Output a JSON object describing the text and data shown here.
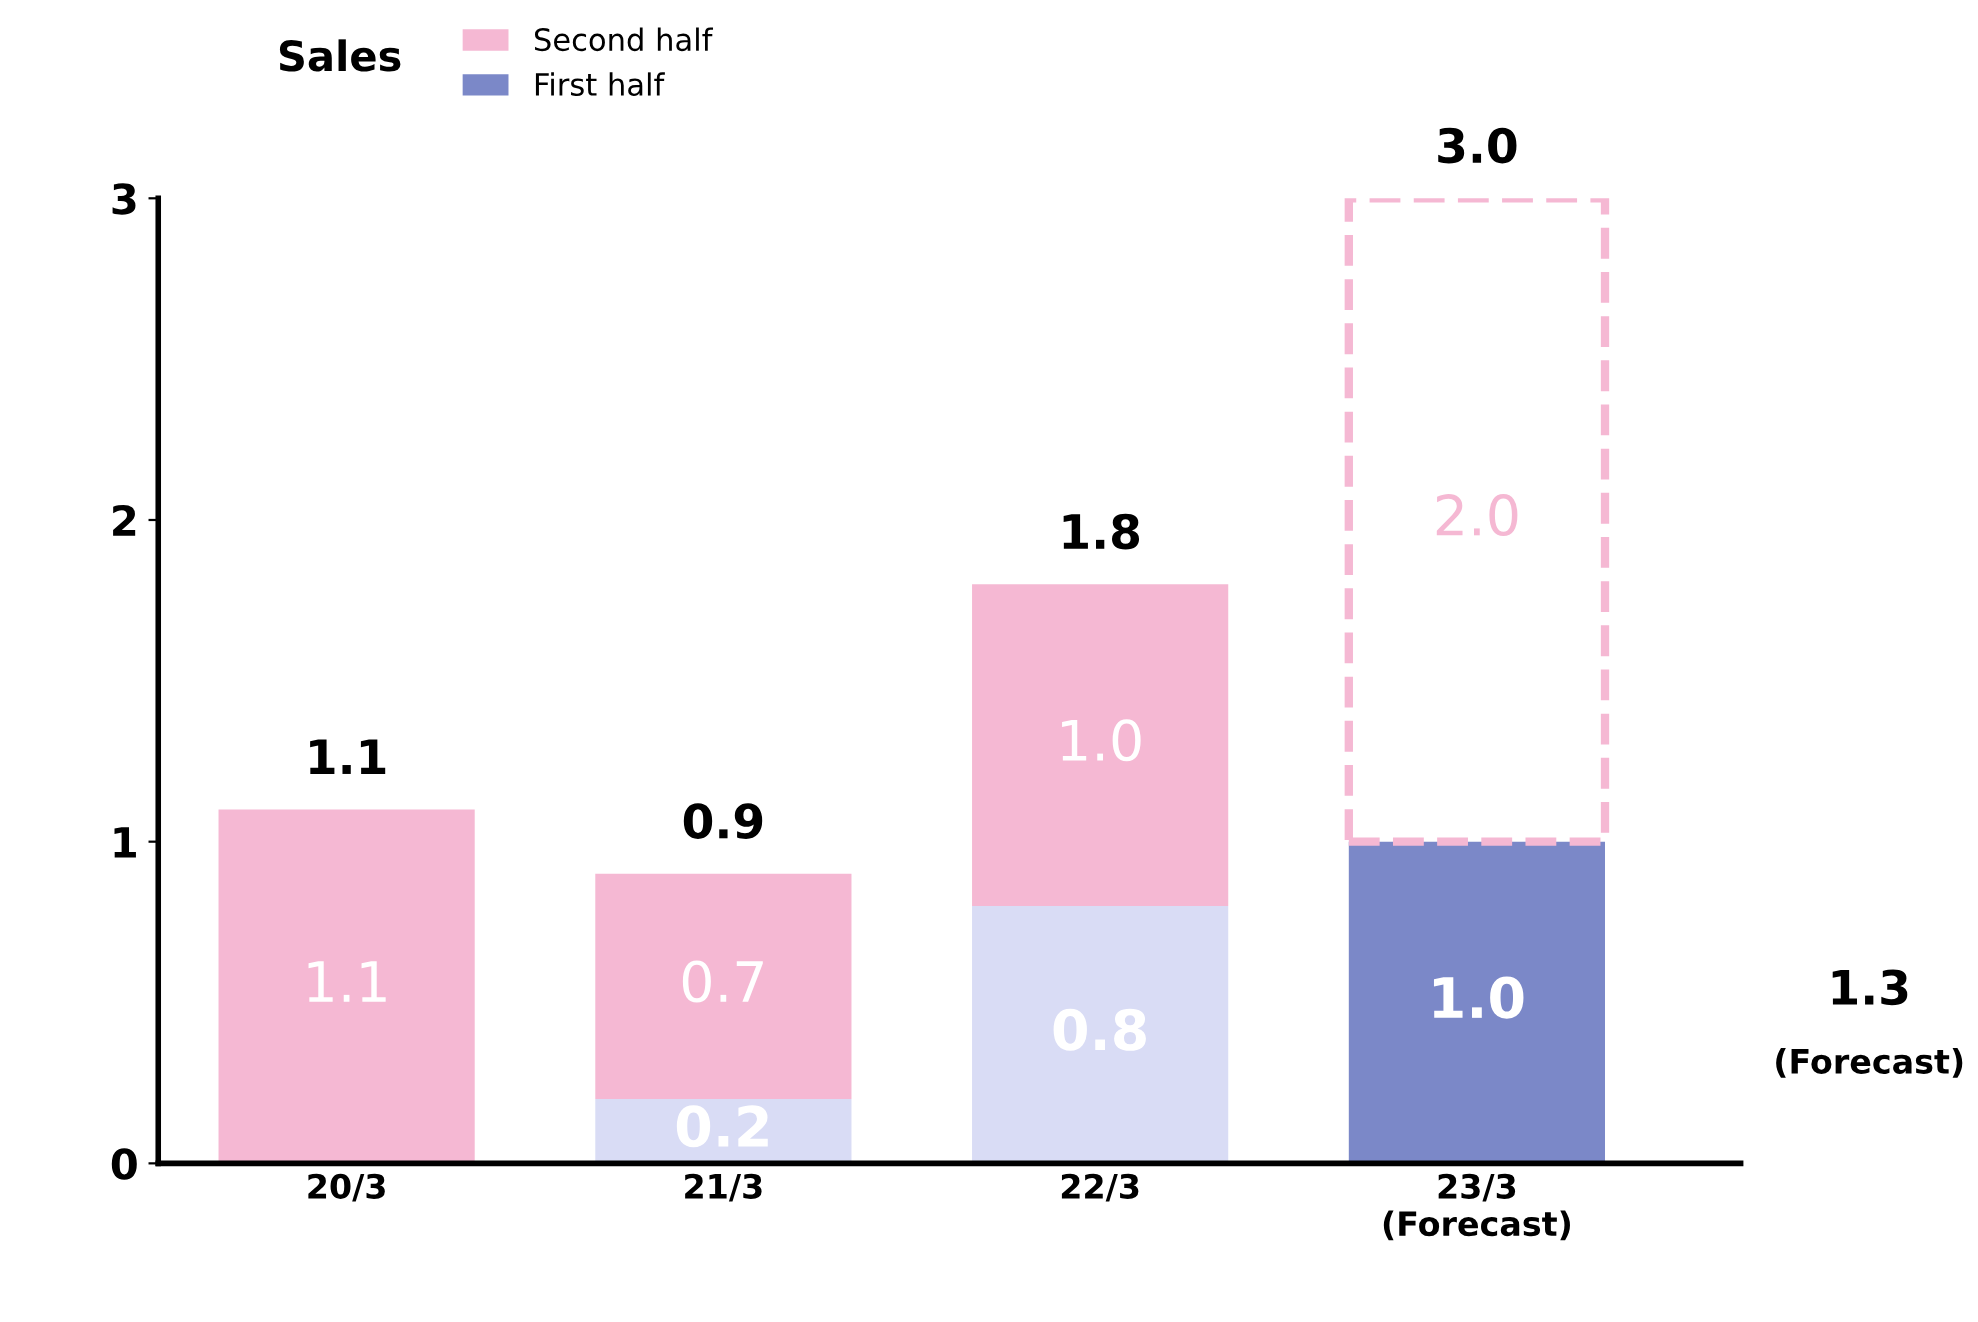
{
  "chart_data": {
    "type": "bar",
    "title": "Sales",
    "stacked": true,
    "categories": [
      "20/3",
      "21/3",
      "22/3",
      "23/3\n(Forecast)"
    ],
    "series": [
      {
        "name": "First half",
        "color": "#7b88c8",
        "colors": [
          "#d9dcf5",
          "#d9dcf5",
          "#d9dcf5",
          "#7b88c8"
        ],
        "values": [
          null,
          0.2,
          0.8,
          1.0
        ],
        "value_labels": [
          null,
          "0.2",
          "0.8",
          "1.0"
        ]
      },
      {
        "name": "Second half",
        "color": "#f5b8d3",
        "values": [
          1.1,
          0.7,
          1.0,
          null
        ],
        "value_labels": [
          "1.1",
          "0.7",
          "1.0",
          null
        ]
      },
      {
        "color": "#f5b8d3",
        "line_style": "dashed",
        "values": [
          null,
          null,
          null,
          2.0
        ],
        "value_labels": [
          null,
          null,
          null,
          "2.0"
        ]
      }
    ],
    "totals": [
      "1.1",
      "0.9",
      "1.8",
      "3.0"
    ],
    "ylim": [
      0,
      3
    ],
    "yticks": [
      0,
      1,
      2,
      3
    ],
    "grid": false,
    "legend": "top left",
    "annotations": [
      "1.3",
      "(Forecast)"
    ]
  }
}
